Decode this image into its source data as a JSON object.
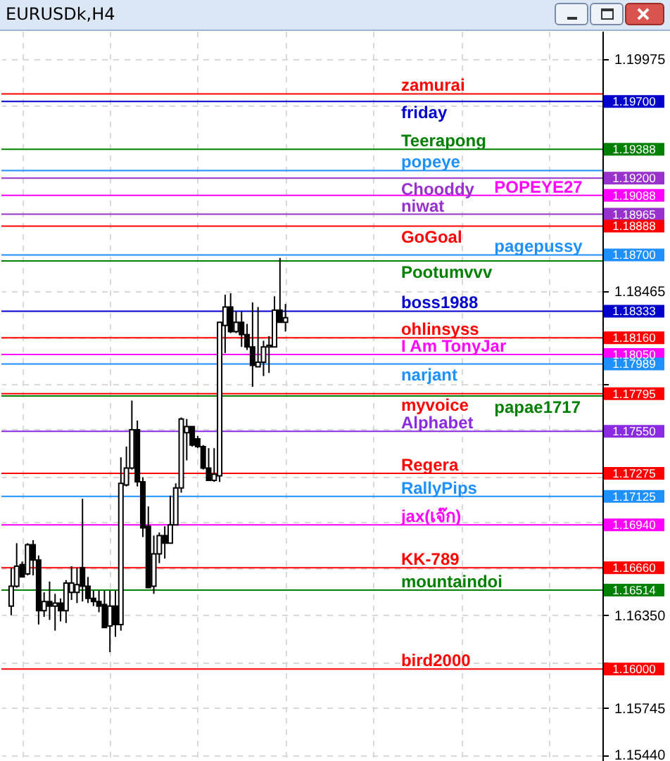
{
  "chart_data": {
    "type": "candlestick",
    "title": "EURUSDk,H4",
    "categories": [
      null,
      null,
      null,
      null,
      null,
      null,
      null,
      null,
      null,
      null,
      null,
      null,
      null,
      null,
      null,
      null,
      null,
      null,
      null,
      null,
      null,
      null,
      null,
      null,
      null,
      null,
      null,
      null,
      null,
      null,
      null,
      null,
      null,
      null,
      null,
      null,
      null,
      null,
      null,
      null,
      null,
      null,
      null,
      null,
      null,
      null,
      null,
      null,
      null,
      null,
      null,
      null,
      null,
      null,
      null,
      null,
      null,
      null,
      null,
      null,
      null,
      null,
      null,
      null,
      null,
      null,
      null,
      null,
      null,
      null,
      null,
      null,
      null,
      null,
      null,
      null,
      null,
      null,
      null,
      null,
      null,
      null,
      null,
      null,
      null,
      null,
      null,
      null,
      null,
      null,
      null,
      null,
      null,
      null,
      null,
      null,
      null,
      null,
      null,
      null,
      null,
      null,
      null,
      null,
      null,
      null,
      null
    ],
    "ohlc": [
      [
        1.1641,
        1.1666,
        1.1635,
        1.1654
      ],
      [
        1.1654,
        1.1682,
        1.1653,
        1.1667
      ],
      [
        1.1668,
        1.167,
        1.166,
        1.166
      ],
      [
        1.1662,
        1.1682,
        1.1661,
        1.1681
      ],
      [
        1.1681,
        1.1684,
        1.1661,
        1.1671
      ],
      [
        1.1671,
        1.1674,
        1.1629,
        1.1638
      ],
      [
        1.1638,
        1.165,
        1.1634,
        1.1644
      ],
      [
        1.1644,
        1.1657,
        1.1632,
        1.1641
      ],
      [
        1.1641,
        1.1649,
        1.1625,
        1.1643
      ],
      [
        1.1643,
        1.1646,
        1.1631,
        1.1638
      ],
      [
        1.1638,
        1.1658,
        1.163,
        1.1656
      ],
      [
        1.165,
        1.1667,
        1.1645,
        1.1656
      ],
      [
        1.165,
        1.1666,
        1.1643,
        1.1655
      ],
      [
        1.1666,
        1.1711,
        1.1644,
        1.1654
      ],
      [
        1.1654,
        1.166,
        1.1643,
        1.1646
      ],
      [
        1.1646,
        1.1651,
        1.1641,
        1.1644
      ],
      [
        1.1644,
        1.1651,
        1.1637,
        1.1641
      ],
      [
        1.1642,
        1.1651,
        1.1627,
        1.1627
      ],
      [
        1.1628,
        1.1651,
        1.1611,
        1.1641
      ],
      [
        1.1641,
        1.1651,
        1.1621,
        1.1629
      ],
      [
        1.1629,
        1.1738,
        1.1625,
        1.1721
      ],
      [
        1.172,
        1.1745,
        1.1719,
        1.1731
      ],
      [
        1.1731,
        1.1775,
        1.173,
        1.1756
      ],
      [
        1.1756,
        1.1762,
        1.1719,
        1.1722
      ],
      [
        1.1722,
        1.1725,
        1.1686,
        1.1692
      ],
      [
        1.1693,
        1.1706,
        1.1653,
        1.1653
      ],
      [
        1.1654,
        1.1687,
        1.1649,
        1.1675
      ],
      [
        1.1675,
        1.1689,
        1.1669,
        1.1687
      ],
      [
        1.1687,
        1.1693,
        1.1672,
        1.1682
      ],
      [
        1.1682,
        1.1713,
        1.1682,
        1.1694
      ],
      [
        1.1694,
        1.1721,
        1.1694,
        1.1718
      ],
      [
        1.1718,
        1.1764,
        1.1715,
        1.1763
      ],
      [
        1.1754,
        1.1763,
        1.1736,
        1.1758
      ],
      [
        1.1758,
        1.1758,
        1.1745,
        1.1746
      ],
      [
        1.175,
        1.1752,
        1.1744,
        1.1745
      ],
      [
        1.1745,
        1.1746,
        1.173,
        1.1731
      ],
      [
        1.1731,
        1.1744,
        1.1723,
        1.1723
      ],
      [
        1.1723,
        1.1744,
        1.1722,
        1.1727
      ],
      [
        1.1726,
        1.1826,
        1.1722,
        1.1826
      ],
      [
        1.1824,
        1.1844,
        1.1806,
        1.1836
      ],
      [
        1.1836,
        1.1845,
        1.1819,
        1.182
      ],
      [
        1.182,
        1.1833,
        1.1819,
        1.1826
      ],
      [
        1.1826,
        1.1833,
        1.181,
        1.1818
      ],
      [
        1.1818,
        1.1825,
        1.1808,
        1.181
      ],
      [
        1.181,
        1.1839,
        1.1784,
        1.1798
      ],
      [
        1.1797,
        1.1836,
        1.1797,
        1.18
      ],
      [
        1.18,
        1.1814,
        1.1791,
        1.181
      ],
      [
        1.181,
        1.1817,
        1.1793,
        1.1811
      ],
      [
        1.181,
        1.1843,
        1.181,
        1.1834
      ],
      [
        1.1834,
        1.1868,
        1.1826,
        1.1826
      ],
      [
        1.1826,
        1.1838,
        1.182,
        1.1829
      ],
      null,
      null,
      null,
      null,
      null,
      null,
      null,
      null,
      null,
      null,
      null,
      null,
      null,
      null,
      null,
      null,
      null,
      null,
      null,
      null,
      null,
      null,
      null,
      null,
      null,
      null,
      null,
      null,
      null,
      null,
      null,
      null,
      null,
      null,
      null,
      null,
      null,
      null,
      null,
      null,
      null,
      null,
      null,
      null,
      null,
      null,
      null,
      null,
      null,
      null,
      null,
      null,
      null,
      null,
      null,
      null
    ],
    "ylim": [
      1.154,
      1.2016
    ],
    "yticks": [
      {
        "value": 1.1544,
        "label": "1.15440"
      },
      {
        "value": 1.15745,
        "label": "1.15745"
      },
      {
        "value": 1.16045,
        "label": null
      },
      {
        "value": 1.1635,
        "label": "1.16350"
      },
      {
        "value": 1.16655,
        "label": null
      },
      {
        "value": 1.16955,
        "label": null
      },
      {
        "value": 1.17255,
        "label": null
      },
      {
        "value": 1.1756,
        "label": null
      },
      {
        "value": 1.1786,
        "label": null
      },
      {
        "value": 1.18165,
        "label": null
      },
      {
        "value": 1.18465,
        "label": "1.18465"
      },
      {
        "value": 1.1967,
        "label": null
      },
      {
        "value": 1.19975,
        "label": "1.19975"
      }
    ],
    "annotations": [
      null,
      "1.19700",
      "1.19388",
      null,
      "1.19200",
      "1.19088",
      "1.18965",
      "1.18888",
      "1.18700",
      null,
      "1.18333",
      "1.18160",
      "1.18050",
      "1.17989",
      "1.17795",
      null,
      "1.17550",
      "1.17275",
      "1.17125",
      "1.16940",
      "1.16660",
      "1.16514",
      "1.16000"
    ],
    "grid": true,
    "tick_labels": "y",
    "ref_lines": [
      {
        "axis": "y",
        "value": 1.1975,
        "label": "zamurai",
        "color": "#ff0000"
      },
      {
        "axis": "y",
        "value": 1.197,
        "label": "friday",
        "color": "#0000cd"
      },
      {
        "axis": "y",
        "value": 1.19388,
        "label": "Teerapong",
        "color": "#008000"
      },
      {
        "axis": "y",
        "value": 1.1925,
        "label": "popeye",
        "color": "#1e90ff"
      },
      {
        "axis": "y",
        "value": 1.192,
        "label": "Chooddy",
        "color": "#9932cc"
      },
      {
        "axis": "y",
        "value": 1.19088,
        "label": "POPEYE27",
        "color": "#ff00ff"
      },
      {
        "axis": "y",
        "value": 1.18965,
        "label": "niwat",
        "color": "#9932cc"
      },
      {
        "axis": "y",
        "value": 1.18888,
        "label": "GoGoal",
        "color": "#ff0000"
      },
      {
        "axis": "y",
        "value": 1.187,
        "label": "pagepussy",
        "color": "#1e90ff"
      },
      {
        "axis": "y",
        "value": 1.1866,
        "label": "Pootumvvv",
        "color": "#008000"
      },
      {
        "axis": "y",
        "value": 1.18333,
        "label": "boss1988",
        "color": "#0000cd"
      },
      {
        "axis": "y",
        "value": 1.1816,
        "label": "ohlinsyss",
        "color": "#ff0000"
      },
      {
        "axis": "y",
        "value": 1.1805,
        "label": "I Am TonyJar",
        "color": "#ff00ff"
      },
      {
        "axis": "y",
        "value": 1.17989,
        "label": "narjant",
        "color": "#1e90ff"
      },
      {
        "axis": "y",
        "value": 1.17795,
        "label": "myvoice",
        "color": "#ff0000"
      },
      {
        "axis": "y",
        "value": 1.1778,
        "label": "papae1717",
        "color": "#008000"
      },
      {
        "axis": "y",
        "value": 1.1755,
        "label": "Alphabet",
        "color": "#8a2be2"
      },
      {
        "axis": "y",
        "value": 1.17275,
        "label": "Regera",
        "color": "#ff0000"
      },
      {
        "axis": "y",
        "value": 1.17125,
        "label": "RallyPips",
        "color": "#1e90ff"
      },
      {
        "axis": "y",
        "value": 1.1694,
        "label": "jax(เจ๊ก)",
        "color": "#ff00ff"
      },
      {
        "axis": "y",
        "value": 1.1666,
        "label": "KK-789",
        "color": "#ff0000"
      },
      {
        "axis": "y",
        "value": 1.16514,
        "label": "mountaindoi",
        "color": "#008000"
      },
      {
        "axis": "y",
        "value": 1.16,
        "label": "bird2000",
        "color": "#ff0000"
      }
    ]
  }
}
